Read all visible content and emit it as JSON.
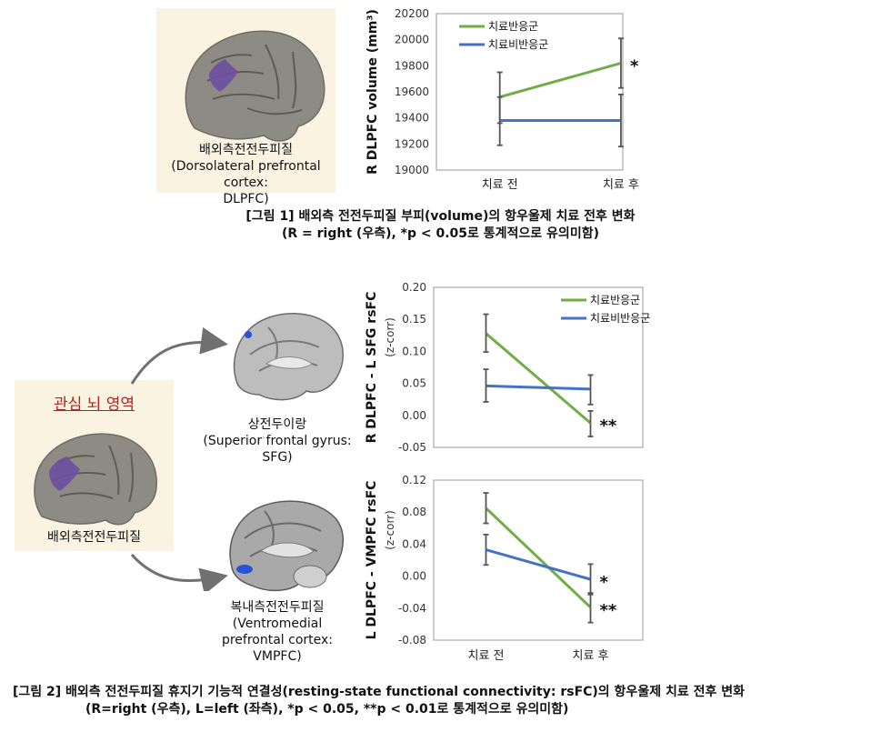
{
  "fig1": {
    "brain_caption_line1": "배외측전전두피질",
    "brain_caption_line2": "(Dorsolateral prefrontal cortex:",
    "brain_caption_line3": "DLPFC)",
    "caption_line1": "[그림 1] 배외측 전전두피질 부피(volume)의 항우울제 치료 전후 변화",
    "caption_line2": "(R = right (우측), *p < 0.05로 통계적으로 유의미함)"
  },
  "fig2": {
    "roi_title": "관심 뇌 영역",
    "roi_label": "배외측전전두피질",
    "sfg_caption_line1": "상전두이랑",
    "sfg_caption_line2": "(Superior frontal gyrus:",
    "sfg_caption_line3": "SFG)",
    "vmpfc_caption_line1": "복내측전전두피질",
    "vmpfc_caption_line2": "(Ventromedial",
    "vmpfc_caption_line3": "prefrontal cortex:",
    "vmpfc_caption_line4": "VMPFC)",
    "caption_line1": "[그림 2] 배외측 전전두피질 휴지기 기능적 연결성(resting-state functional connectivity: rsFC)의 항우울제 치료 전후 변화",
    "caption_line2": "(R=right (우측), L=left (좌측), *p < 0.05,  **p < 0.01로 통계적으로 유의미함)"
  },
  "colors": {
    "responder": "#70ad47",
    "nonresponder": "#4472c4",
    "error": "#555555",
    "panel_bg": "#fbf3e2",
    "roi_title": "#b22222"
  },
  "chart_data": [
    {
      "id": "volume",
      "type": "line",
      "categories": [
        "치료 전",
        "치료 후"
      ],
      "ylabel": "R DLPFC volume (mm³)",
      "ylim": [
        19000,
        20200
      ],
      "yticks": [
        19000,
        19200,
        19400,
        19600,
        19800,
        20000,
        20200
      ],
      "tick_decimals": 0,
      "legend": "top-left",
      "series": [
        {
          "name": "치료반응군",
          "values": [
            19560,
            19820
          ],
          "err_low": [
            19360,
            19630
          ],
          "err_high": [
            19750,
            20010
          ],
          "color": "#70ad47",
          "marks": [
            "",
            "*"
          ]
        },
        {
          "name": "치료비반응군",
          "values": [
            19380,
            19380
          ],
          "err_low": [
            19190,
            19180
          ],
          "err_high": [
            19560,
            19580
          ],
          "color": "#4472c4",
          "marks": [
            "",
            ""
          ]
        }
      ]
    },
    {
      "id": "sfg",
      "type": "line",
      "categories": [
        "",
        ""
      ],
      "ylabel": "R DLPFC - L SFG rsFC",
      "ylabel2": "(z-corr)",
      "ylim": [
        -0.05,
        0.2
      ],
      "yticks": [
        -0.05,
        0.0,
        0.05,
        0.1,
        0.15,
        0.2
      ],
      "tick_decimals": 2,
      "legend": "top-right",
      "series": [
        {
          "name": "치료반응군",
          "values": [
            0.128,
            -0.012
          ],
          "err_low": [
            0.099,
            -0.033
          ],
          "err_high": [
            0.158,
            0.007
          ],
          "color": "#70ad47",
          "marks": [
            "",
            "**"
          ]
        },
        {
          "name": "치료비반응군",
          "values": [
            0.046,
            0.041
          ],
          "err_low": [
            0.021,
            0.017
          ],
          "err_high": [
            0.072,
            0.063
          ],
          "color": "#4472c4",
          "marks": [
            "",
            ""
          ]
        }
      ]
    },
    {
      "id": "vmpfc",
      "type": "line",
      "categories": [
        "치료 전",
        "치료 후"
      ],
      "ylabel": "L DLPFC - VMPFC rsFC",
      "ylabel2": "(z-corr)",
      "ylim": [
        -0.08,
        0.12
      ],
      "yticks": [
        -0.08,
        -0.04,
        0.0,
        0.04,
        0.08,
        0.12
      ],
      "tick_decimals": 2,
      "legend": "none",
      "series": [
        {
          "name": "치료반응군",
          "values": [
            0.085,
            -0.039
          ],
          "err_low": [
            0.066,
            -0.058
          ],
          "err_high": [
            0.104,
            -0.021
          ],
          "color": "#70ad47",
          "marks": [
            "",
            "**"
          ]
        },
        {
          "name": "치료비반응군",
          "values": [
            0.033,
            -0.004
          ],
          "err_low": [
            0.014,
            -0.023
          ],
          "err_high": [
            0.052,
            0.015
          ],
          "color": "#4472c4",
          "marks": [
            "",
            "*"
          ]
        }
      ]
    }
  ]
}
